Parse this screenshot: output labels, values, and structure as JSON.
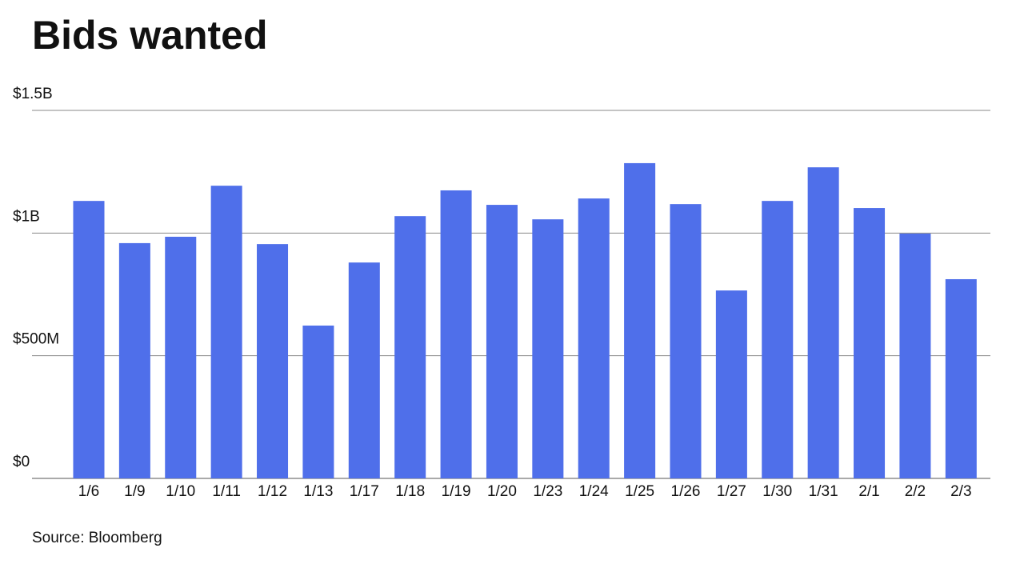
{
  "chart_data": {
    "type": "bar",
    "title": "Bids wanted",
    "source": "Source: Bloomberg",
    "categories": [
      "1/6",
      "1/9",
      "1/10",
      "1/11",
      "1/12",
      "1/13",
      "1/17",
      "1/18",
      "1/19",
      "1/20",
      "1/23",
      "1/24",
      "1/25",
      "1/26",
      "1/27",
      "1/30",
      "1/31",
      "2/1",
      "2/2",
      "2/3"
    ],
    "values": [
      1131,
      959,
      985,
      1193,
      955,
      623,
      880,
      1069,
      1174,
      1115,
      1056,
      1141,
      1285,
      1118,
      766,
      1131,
      1268,
      1102,
      998,
      812
    ],
    "color": "#4f6fea",
    "ylim": [
      0,
      1500
    ],
    "yticks": [
      {
        "value": 0,
        "label": "$0"
      },
      {
        "value": 500,
        "label": "$500M"
      },
      {
        "value": 1000,
        "label": "$1B"
      },
      {
        "value": 1500,
        "label": "$1.5B"
      }
    ],
    "grid": true
  }
}
